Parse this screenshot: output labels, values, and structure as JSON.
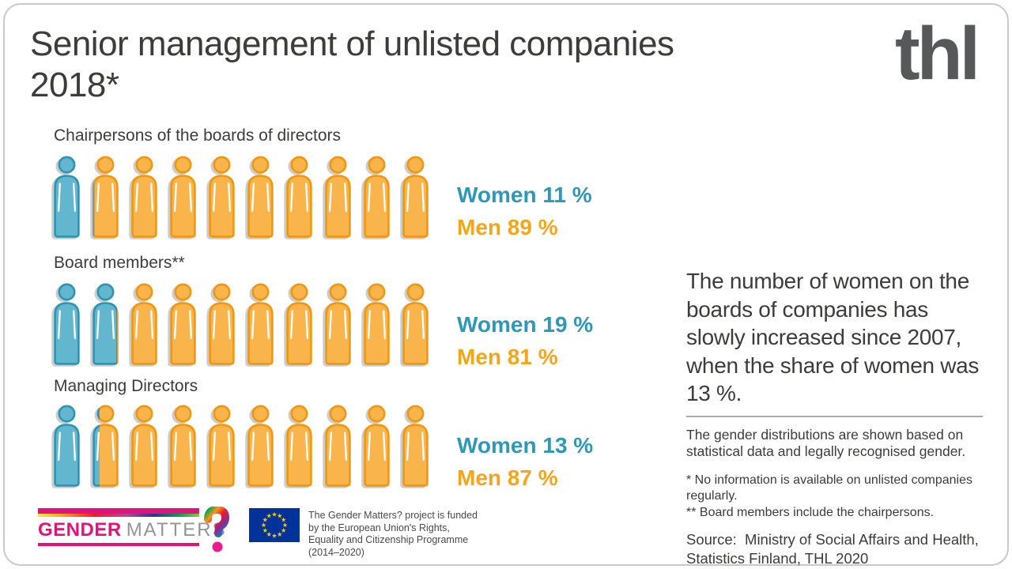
{
  "title": "Senior management of unlisted companies 2018*",
  "brand": {
    "thl": "thl"
  },
  "chart_data": {
    "type": "pictogram",
    "icons_per_row": 10,
    "title": "Senior management of unlisted companies 2018*",
    "legend": [
      "Women",
      "Men"
    ],
    "rows": [
      {
        "label": "Chairpersons of the boards of directors",
        "women_pct": 11,
        "men_pct": 89,
        "women_label": "Women 11 %",
        "men_label": "Men 89 %"
      },
      {
        "label": "Board members**",
        "women_pct": 19,
        "men_pct": 81,
        "women_label": "Women 19 %",
        "men_label": "Men 81 %"
      },
      {
        "label": "Managing Directors",
        "women_pct": 13,
        "men_pct": 87,
        "women_label": "Women 13 %",
        "men_label": "Men 87 %"
      }
    ],
    "colors": {
      "women_fill": "#62B6CE",
      "women_outline": "#2D94B4",
      "men_fill": "#F9B44B",
      "men_outline": "#F1970D",
      "women_text": "#2F97B7",
      "men_text": "#F4A51D"
    }
  },
  "side_panel": {
    "highlight": "The number of women on the boards of companies has slowly increased since 2007, when the share of women was 13 %.",
    "note": "The gender distributions are shown based on statistical data and legally recognised gender.",
    "footnote1": "* No information is available on unlisted companies regularly.",
    "footnote2": "** Board members include the chairpersons.",
    "source": "Source:  Ministry of Social Affairs and Health, Statistics Finland, THL 2020"
  },
  "footer": {
    "gender_logo": {
      "word1": "GENDER",
      "word2": "MATTERS",
      "qmark": "?"
    },
    "eu_text": "The Gender Matters? project is funded by the European Union's Rights, Equality and Citizenship Programme (2014–2020)"
  }
}
